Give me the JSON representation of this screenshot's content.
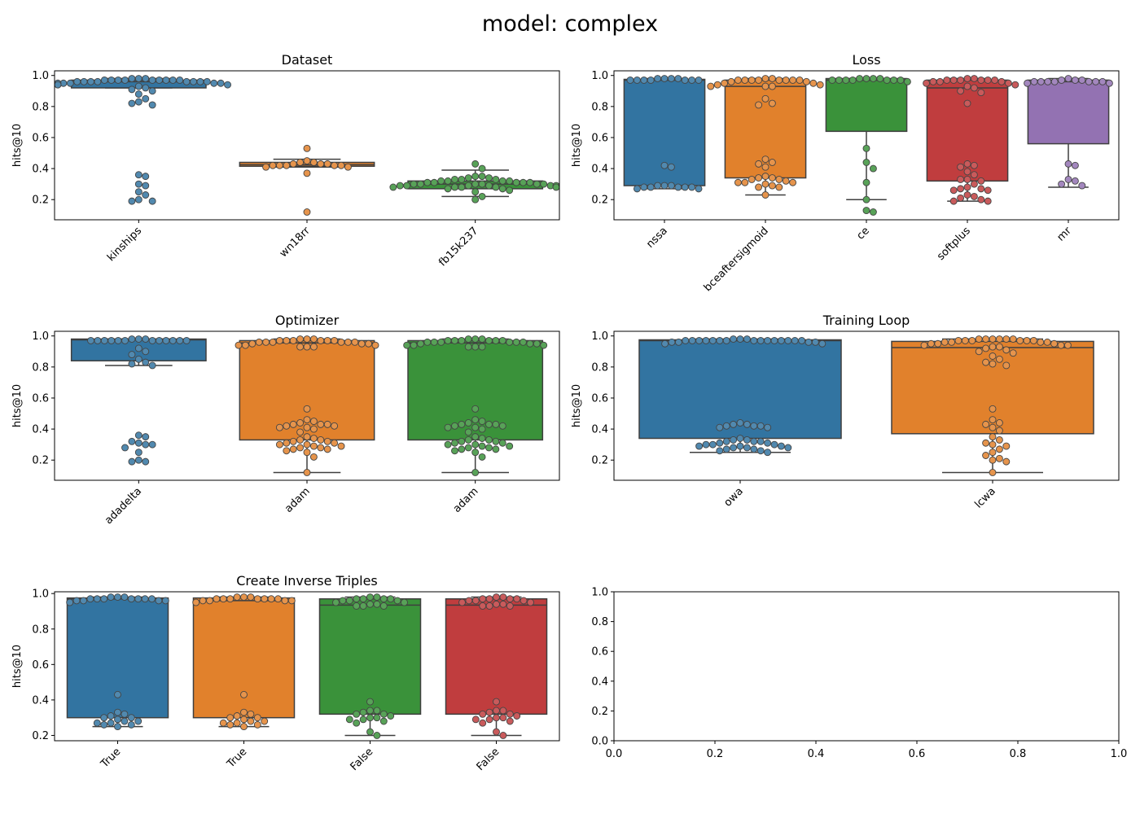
{
  "suptitle": "model: complex",
  "colors": {
    "blue": "#3274a1",
    "orange": "#e1812c",
    "green": "#3a923a",
    "red": "#c03d3e",
    "purple": "#9372b2",
    "box_edge": "#3f3f3f"
  },
  "chart_data": [
    {
      "type": "box+swarm",
      "title": "Dataset",
      "ylabel": "hits@10",
      "ylim": [
        0.07,
        1.03
      ],
      "yticks": [
        "0.2",
        "0.4",
        "0.6",
        "0.8",
        "1.0"
      ],
      "categories": [
        "kinships",
        "wn18rr",
        "fb15k237"
      ],
      "boxes": [
        {
          "color": "#3274a1",
          "whislo": 0.92,
          "q1": 0.92,
          "median": 0.96,
          "q3": 0.97,
          "whishi": 0.98,
          "points": [
            0.98,
            0.97,
            0.97,
            0.96,
            0.96,
            0.97,
            0.96,
            0.95,
            0.95,
            0.94,
            0.97,
            0.96,
            0.95,
            0.94,
            0.96,
            0.97,
            0.98,
            0.97,
            0.96,
            0.95,
            0.94,
            0.93,
            0.92,
            0.91,
            0.9,
            0.88,
            0.85,
            0.83,
            0.82,
            0.81,
            0.36,
            0.35,
            0.3,
            0.29,
            0.25,
            0.23,
            0.2,
            0.19,
            0.19,
            0.97,
            0.98,
            0.97,
            0.96,
            0.95,
            0.96,
            0.97
          ]
        },
        {
          "color": "#e1812c",
          "whislo": 0.41,
          "q1": 0.415,
          "median": 0.425,
          "q3": 0.44,
          "whishi": 0.46,
          "points": [
            0.53,
            0.45,
            0.44,
            0.43,
            0.43,
            0.42,
            0.42,
            0.42,
            0.42,
            0.41,
            0.41,
            0.42,
            0.43,
            0.44,
            0.37,
            0.12
          ]
        },
        {
          "color": "#3a923a",
          "whislo": 0.22,
          "q1": 0.27,
          "median": 0.3,
          "q3": 0.32,
          "whishi": 0.39,
          "points": [
            0.43,
            0.4,
            0.35,
            0.35,
            0.34,
            0.34,
            0.33,
            0.33,
            0.32,
            0.32,
            0.31,
            0.31,
            0.31,
            0.3,
            0.3,
            0.3,
            0.3,
            0.29,
            0.29,
            0.29,
            0.29,
            0.28,
            0.28,
            0.28,
            0.28,
            0.27,
            0.27,
            0.26,
            0.25,
            0.22,
            0.2,
            0.32,
            0.31,
            0.3,
            0.29,
            0.3,
            0.31,
            0.32,
            0.33,
            0.29,
            0.28
          ]
        }
      ]
    },
    {
      "type": "box+swarm",
      "title": "Loss",
      "ylabel": "hits@10",
      "ylim": [
        0.07,
        1.03
      ],
      "yticks": [
        "0.2",
        "0.4",
        "0.6",
        "0.8",
        "1.0"
      ],
      "categories": [
        "nssa",
        "bceaftersigmoid",
        "ce",
        "softplus",
        "mr"
      ],
      "boxes": [
        {
          "color": "#3274a1",
          "whislo": 0.27,
          "q1": 0.29,
          "median": 0.97,
          "q3": 0.975,
          "whishi": 0.98,
          "points": [
            0.98,
            0.98,
            0.97,
            0.97,
            0.97,
            0.97,
            0.97,
            0.97,
            0.97,
            0.98,
            0.98,
            0.42,
            0.41,
            0.29,
            0.29,
            0.28,
            0.28,
            0.28,
            0.27,
            0.27,
            0.28,
            0.28,
            0.29
          ]
        },
        {
          "color": "#e1812c",
          "whislo": 0.23,
          "q1": 0.34,
          "median": 0.93,
          "q3": 0.97,
          "whishi": 0.98,
          "points": [
            0.98,
            0.98,
            0.97,
            0.97,
            0.97,
            0.97,
            0.97,
            0.97,
            0.97,
            0.97,
            0.96,
            0.96,
            0.95,
            0.95,
            0.94,
            0.94,
            0.93,
            0.93,
            0.93,
            0.85,
            0.82,
            0.81,
            0.46,
            0.44,
            0.43,
            0.41,
            0.35,
            0.34,
            0.34,
            0.33,
            0.33,
            0.32,
            0.31,
            0.31,
            0.31,
            0.3,
            0.29,
            0.28,
            0.28,
            0.23
          ]
        },
        {
          "color": "#3a923a",
          "whislo": 0.2,
          "q1": 0.64,
          "median": 0.97,
          "q3": 0.98,
          "whishi": 0.98,
          "points": [
            0.98,
            0.98,
            0.98,
            0.97,
            0.97,
            0.97,
            0.97,
            0.97,
            0.97,
            0.96,
            0.97,
            0.98,
            0.53,
            0.44,
            0.4,
            0.31,
            0.2,
            0.13,
            0.12
          ]
        },
        {
          "color": "#c03d3e",
          "whislo": 0.19,
          "q1": 0.32,
          "median": 0.92,
          "q3": 0.97,
          "whishi": 0.98,
          "points": [
            0.98,
            0.98,
            0.97,
            0.97,
            0.97,
            0.97,
            0.97,
            0.97,
            0.96,
            0.96,
            0.96,
            0.95,
            0.95,
            0.94,
            0.93,
            0.92,
            0.9,
            0.89,
            0.82,
            0.43,
            0.42,
            0.41,
            0.38,
            0.36,
            0.33,
            0.33,
            0.32,
            0.3,
            0.28,
            0.27,
            0.27,
            0.26,
            0.26,
            0.23,
            0.22,
            0.21,
            0.2,
            0.19,
            0.19
          ]
        },
        {
          "color": "#9372b2",
          "whislo": 0.28,
          "q1": 0.56,
          "median": 0.96,
          "q3": 0.97,
          "whishi": 0.98,
          "points": [
            0.97,
            0.97,
            0.96,
            0.96,
            0.96,
            0.96,
            0.97,
            0.96,
            0.96,
            0.95,
            0.95,
            0.96,
            0.98,
            0.43,
            0.42,
            0.33,
            0.32,
            0.3,
            0.29
          ]
        }
      ]
    },
    {
      "type": "box+swarm",
      "title": "Optimizer",
      "ylabel": "hits@10",
      "ylim": [
        0.07,
        1.03
      ],
      "yticks": [
        "0.2",
        "0.4",
        "0.6",
        "0.8",
        "1.0"
      ],
      "categories": [
        "adadelta",
        "adam",
        "adam"
      ],
      "boxes": [
        {
          "color": "#3274a1",
          "whislo": 0.81,
          "q1": 0.84,
          "median": 0.975,
          "q3": 0.98,
          "whishi": 0.98,
          "points": [
            0.98,
            0.98,
            0.97,
            0.97,
            0.97,
            0.97,
            0.97,
            0.97,
            0.97,
            0.97,
            0.97,
            0.97,
            0.97,
            0.97,
            0.98,
            0.92,
            0.9,
            0.88,
            0.85,
            0.83,
            0.82,
            0.81,
            0.36,
            0.35,
            0.32,
            0.31,
            0.3,
            0.3,
            0.28,
            0.25,
            0.2,
            0.19,
            0.19
          ]
        },
        {
          "color": "#e1812c",
          "whislo": 0.12,
          "q1": 0.33,
          "median": 0.955,
          "q3": 0.97,
          "whishi": 0.98,
          "points": [
            0.98,
            0.98,
            0.98,
            0.97,
            0.97,
            0.97,
            0.97,
            0.97,
            0.97,
            0.96,
            0.96,
            0.96,
            0.96,
            0.96,
            0.96,
            0.95,
            0.95,
            0.95,
            0.94,
            0.94,
            0.94,
            0.93,
            0.93,
            0.93,
            0.53,
            0.46,
            0.45,
            0.44,
            0.43,
            0.43,
            0.43,
            0.42,
            0.42,
            0.41,
            0.41,
            0.4,
            0.38,
            0.35,
            0.34,
            0.33,
            0.33,
            0.32,
            0.32,
            0.31,
            0.31,
            0.3,
            0.3,
            0.29,
            0.29,
            0.28,
            0.28,
            0.27,
            0.27,
            0.26,
            0.25,
            0.22,
            0.12
          ]
        },
        {
          "color": "#3a923a",
          "whislo": 0.12,
          "q1": 0.33,
          "median": 0.955,
          "q3": 0.97,
          "whishi": 0.98,
          "points": [
            0.98,
            0.98,
            0.98,
            0.97,
            0.97,
            0.97,
            0.97,
            0.97,
            0.97,
            0.96,
            0.96,
            0.96,
            0.96,
            0.96,
            0.96,
            0.95,
            0.95,
            0.95,
            0.94,
            0.94,
            0.94,
            0.93,
            0.93,
            0.93,
            0.53,
            0.46,
            0.45,
            0.44,
            0.43,
            0.43,
            0.43,
            0.42,
            0.42,
            0.41,
            0.41,
            0.4,
            0.38,
            0.35,
            0.34,
            0.33,
            0.33,
            0.32,
            0.32,
            0.31,
            0.31,
            0.3,
            0.3,
            0.29,
            0.29,
            0.28,
            0.28,
            0.27,
            0.27,
            0.26,
            0.25,
            0.22,
            0.12
          ]
        }
      ]
    },
    {
      "type": "box+swarm",
      "title": "Training Loop",
      "ylabel": "hits@10",
      "ylim": [
        0.07,
        1.03
      ],
      "yticks": [
        "0.2",
        "0.4",
        "0.6",
        "0.8",
        "1.0"
      ],
      "categories": [
        "owa",
        "lcwa"
      ],
      "boxes": [
        {
          "color": "#3274a1",
          "whislo": 0.25,
          "q1": 0.34,
          "median": 0.97,
          "q3": 0.975,
          "whishi": 0.98,
          "points": [
            0.98,
            0.98,
            0.98,
            0.97,
            0.97,
            0.97,
            0.97,
            0.97,
            0.97,
            0.97,
            0.97,
            0.97,
            0.97,
            0.97,
            0.97,
            0.97,
            0.97,
            0.97,
            0.96,
            0.96,
            0.96,
            0.96,
            0.95,
            0.95,
            0.44,
            0.43,
            0.43,
            0.42,
            0.42,
            0.42,
            0.41,
            0.41,
            0.34,
            0.33,
            0.33,
            0.32,
            0.32,
            0.32,
            0.31,
            0.31,
            0.3,
            0.3,
            0.3,
            0.29,
            0.29,
            0.29,
            0.28,
            0.28,
            0.28,
            0.27,
            0.27,
            0.26,
            0.26,
            0.25
          ]
        },
        {
          "color": "#e1812c",
          "whislo": 0.12,
          "q1": 0.37,
          "median": 0.925,
          "q3": 0.965,
          "whishi": 0.98,
          "points": [
            0.98,
            0.98,
            0.98,
            0.98,
            0.98,
            0.98,
            0.97,
            0.97,
            0.97,
            0.97,
            0.97,
            0.97,
            0.96,
            0.96,
            0.96,
            0.96,
            0.95,
            0.95,
            0.95,
            0.94,
            0.94,
            0.94,
            0.93,
            0.93,
            0.92,
            0.91,
            0.9,
            0.89,
            0.87,
            0.85,
            0.83,
            0.82,
            0.81,
            0.53,
            0.46,
            0.44,
            0.43,
            0.41,
            0.39,
            0.35,
            0.33,
            0.31,
            0.3,
            0.29,
            0.27,
            0.25,
            0.23,
            0.21,
            0.2,
            0.19,
            0.12
          ]
        }
      ]
    },
    {
      "type": "box+swarm",
      "title": "Create Inverse Triples",
      "ylabel": "hits@10",
      "ylim": [
        0.17,
        1.01
      ],
      "yticks": [
        "0.2",
        "0.4",
        "0.6",
        "0.8",
        "1.0"
      ],
      "categories": [
        "True",
        "True",
        "False",
        "False"
      ],
      "boxes": [
        {
          "color": "#3274a1",
          "whislo": 0.25,
          "q1": 0.3,
          "median": 0.97,
          "q3": 0.975,
          "whishi": 0.98,
          "points": [
            0.98,
            0.98,
            0.97,
            0.97,
            0.97,
            0.97,
            0.97,
            0.97,
            0.96,
            0.96,
            0.96,
            0.96,
            0.95,
            0.97,
            0.98,
            0.43,
            0.33,
            0.32,
            0.31,
            0.3,
            0.3,
            0.29,
            0.28,
            0.28,
            0.27,
            0.27,
            0.26,
            0.26,
            0.25
          ]
        },
        {
          "color": "#e1812c",
          "whislo": 0.25,
          "q1": 0.3,
          "median": 0.96,
          "q3": 0.975,
          "whishi": 0.98,
          "points": [
            0.98,
            0.98,
            0.97,
            0.97,
            0.97,
            0.97,
            0.97,
            0.97,
            0.96,
            0.96,
            0.96,
            0.96,
            0.95,
            0.97,
            0.98,
            0.43,
            0.33,
            0.32,
            0.31,
            0.3,
            0.3,
            0.29,
            0.28,
            0.28,
            0.27,
            0.27,
            0.26,
            0.26,
            0.25
          ]
        },
        {
          "color": "#3a923a",
          "whislo": 0.2,
          "q1": 0.32,
          "median": 0.935,
          "q3": 0.97,
          "whishi": 0.98,
          "points": [
            0.98,
            0.98,
            0.97,
            0.97,
            0.97,
            0.97,
            0.96,
            0.96,
            0.96,
            0.95,
            0.95,
            0.94,
            0.94,
            0.93,
            0.93,
            0.93,
            0.39,
            0.34,
            0.34,
            0.33,
            0.32,
            0.32,
            0.31,
            0.3,
            0.3,
            0.29,
            0.29,
            0.28,
            0.27,
            0.22,
            0.2
          ]
        },
        {
          "color": "#c03d3e",
          "whislo": 0.2,
          "q1": 0.32,
          "median": 0.935,
          "q3": 0.97,
          "whishi": 0.98,
          "points": [
            0.98,
            0.98,
            0.97,
            0.97,
            0.97,
            0.97,
            0.96,
            0.96,
            0.96,
            0.95,
            0.95,
            0.94,
            0.94,
            0.93,
            0.93,
            0.93,
            0.39,
            0.34,
            0.34,
            0.33,
            0.32,
            0.32,
            0.31,
            0.3,
            0.3,
            0.29,
            0.29,
            0.28,
            0.27,
            0.22,
            0.2
          ]
        }
      ]
    },
    {
      "type": "empty",
      "title": "",
      "xlim": [
        0,
        1
      ],
      "ylim": [
        0,
        1
      ],
      "xticks": [
        "0.0",
        "0.2",
        "0.4",
        "0.6",
        "0.8",
        "1.0"
      ],
      "yticks": [
        "0.0",
        "0.2",
        "0.4",
        "0.6",
        "0.8",
        "1.0"
      ]
    }
  ]
}
